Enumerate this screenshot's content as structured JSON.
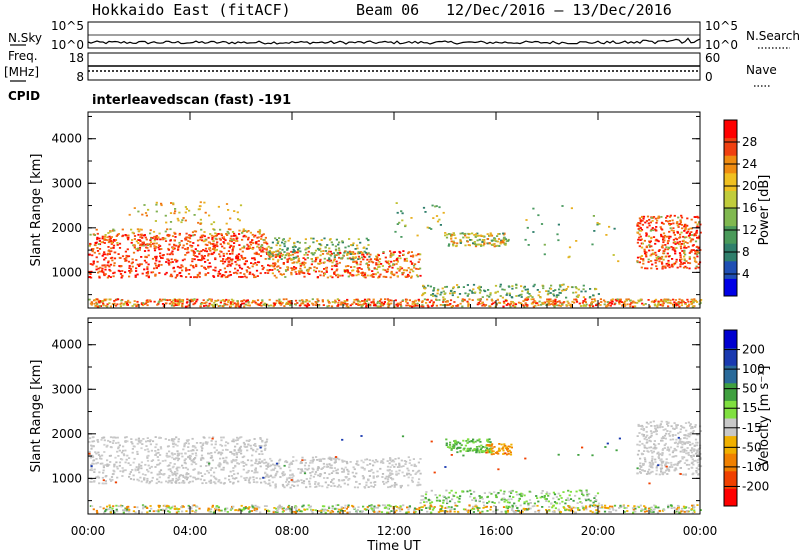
{
  "header": {
    "station": "Hokkaido East (fitACF)",
    "beam": "Beam 06",
    "date_range": "12/Dec/2016 – 13/Dec/2016"
  },
  "top_panels": {
    "nsky_label": "N.Sky",
    "nsky_ticks": [
      "10^5",
      "10^0"
    ],
    "nsky_right_ticks": [
      "10^5",
      "10^0"
    ],
    "nsearch_label": "N.Search",
    "freq_label_1": "Freq.",
    "freq_label_2": "[MHz]",
    "freq_ticks": [
      "18",
      "8"
    ],
    "nave_ticks": [
      "60",
      "0"
    ],
    "nave_label": "Nave",
    "cpid_label": "CPID",
    "cpid_value": "interleavedscan (fast) -191"
  },
  "chart_data": [
    {
      "type": "heatmap",
      "name": "power",
      "ylabel": "Slant Range [km]",
      "yticks": [
        1000,
        2000,
        3000,
        4000
      ],
      "ylim": [
        200,
        4600
      ],
      "colorbar_label": "Power [dB]",
      "colorbar_ticks": [
        "28",
        "24",
        "20",
        "16",
        "12",
        "8",
        "4"
      ],
      "colorbar_colors": [
        "#0000e6",
        "#1f4fb4",
        "#2f7f6c",
        "#4a9a5a",
        "#80b850",
        "#c0cc3c",
        "#f0c020",
        "#f08c10",
        "#f04010",
        "#ff0000"
      ]
    },
    {
      "type": "heatmap",
      "name": "velocity",
      "ylabel": "Slant Range [km]",
      "yticks": [
        1000,
        2000,
        3000,
        4000
      ],
      "ylim": [
        200,
        4600
      ],
      "colorbar_label": "Velocity [m s⁻¹]",
      "colorbar_ticks": [
        "200",
        "100",
        "50",
        "15",
        "-15",
        "-50",
        "-100",
        "-200"
      ],
      "colorbar_colors": [
        "#ff0000",
        "#f04000",
        "#f08000",
        "#f0b000",
        "#c8c8c8",
        "#80e040",
        "#40a040",
        "#2a6a9a",
        "#1a3ab0",
        "#0000d0"
      ]
    }
  ],
  "xaxis": {
    "label": "Time UT",
    "ticks": [
      "00:00",
      "04:00",
      "08:00",
      "12:00",
      "16:00",
      "20:00",
      "00:00"
    ]
  }
}
